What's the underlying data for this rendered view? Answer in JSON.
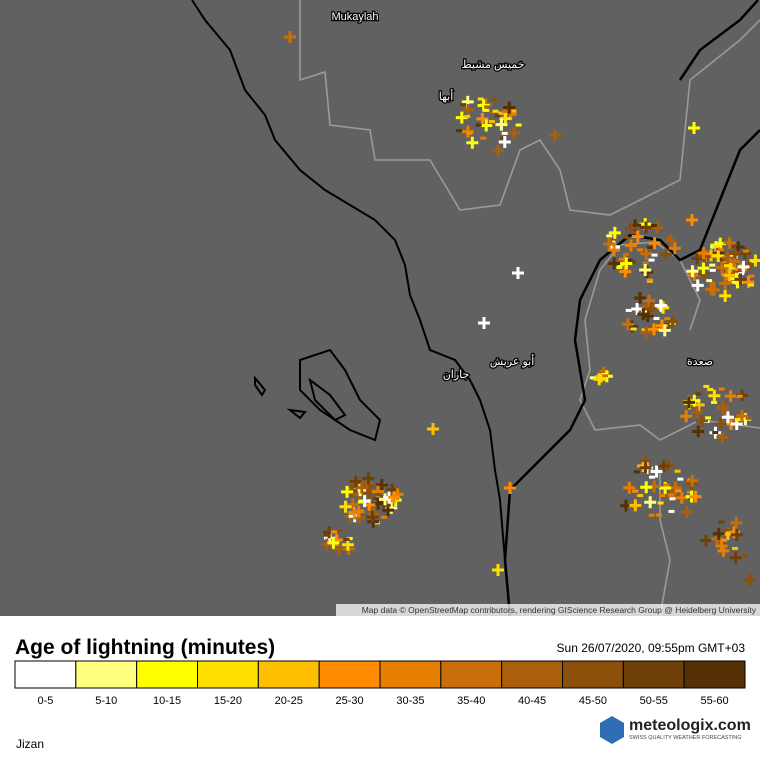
{
  "map": {
    "places": [
      "Mukaylah",
      "أبها",
      "خميس مشيط",
      "جازان",
      "أبو عريش",
      "صعدة"
    ],
    "attribution": "Map data © OpenStreetMap contributors, rendering GIScience Research Group @ Heidelberg University"
  },
  "legend": {
    "title": "Age of lightning (minutes)",
    "timestamp": "Sun 26/07/2020, 09:55pm GMT+03",
    "items": [
      {
        "label": "0-5",
        "color": "#ffffff"
      },
      {
        "label": "5-10",
        "color": "#ffff80"
      },
      {
        "label": "10-15",
        "color": "#ffff00"
      },
      {
        "label": "15-20",
        "color": "#ffdf00"
      },
      {
        "label": "20-25",
        "color": "#ffbf00"
      },
      {
        "label": "25-30",
        "color": "#ff8c00"
      },
      {
        "label": "30-35",
        "color": "#e67e00"
      },
      {
        "label": "35-40",
        "color": "#c86e0a"
      },
      {
        "label": "40-45",
        "color": "#aa5f0a"
      },
      {
        "label": "45-50",
        "color": "#8c4f0a"
      },
      {
        "label": "50-55",
        "color": "#6e3f08"
      },
      {
        "label": "55-60",
        "color": "#553005"
      }
    ]
  },
  "branding": {
    "name": "meteologix.com",
    "tagline": "SWISS QUALITY WEATHER FORECASTING"
  },
  "location": "Jizan"
}
